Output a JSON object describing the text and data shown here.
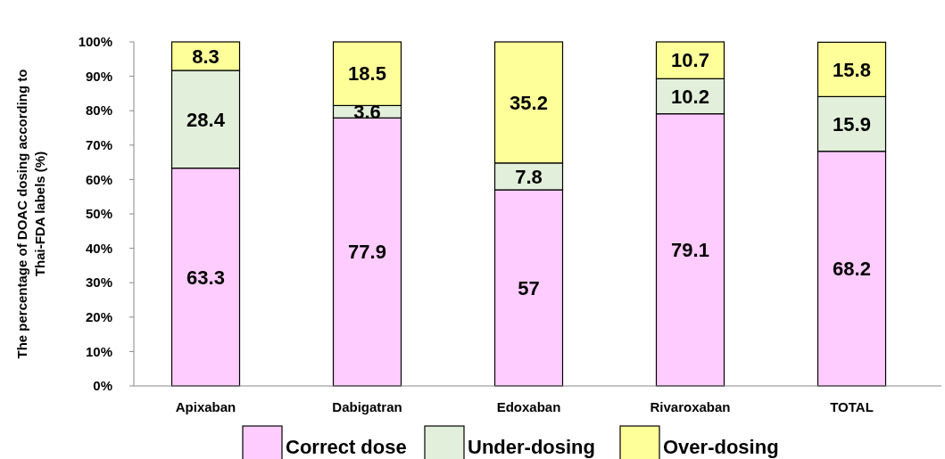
{
  "chart_data": {
    "type": "bar",
    "stacked": true,
    "ylabel": "The percentage of DOAC dosing according to Thai-FDA labels (%)",
    "categories": [
      "Apixaban",
      "Dabigatran",
      "Edoxaban",
      "Rivaroxaban",
      "TOTAL"
    ],
    "series": [
      {
        "name": "Correct dose",
        "color": "#ffccff",
        "values": [
          63.3,
          77.9,
          57,
          79.1,
          68.2
        ]
      },
      {
        "name": "Under-dosing",
        "color": "#e2efda",
        "values": [
          28.4,
          3.6,
          7.8,
          10.2,
          15.9
        ]
      },
      {
        "name": "Over-dosing",
        "color": "#ffff99",
        "values": [
          8.3,
          18.5,
          35.2,
          10.7,
          15.8
        ]
      }
    ],
    "ylim": [
      0,
      100
    ],
    "yticks": [
      {
        "value": 0,
        "label": "0%"
      },
      {
        "value": 10,
        "label": "10%"
      },
      {
        "value": 20,
        "label": "20%"
      },
      {
        "value": 30,
        "label": "30%"
      },
      {
        "value": 40,
        "label": "40%"
      },
      {
        "value": 50,
        "label": "50%"
      },
      {
        "value": 60,
        "label": "60%"
      },
      {
        "value": 70,
        "label": "70%"
      },
      {
        "value": 80,
        "label": "80%"
      },
      {
        "value": 90,
        "label": "90%"
      },
      {
        "value": 100,
        "label": "100%"
      }
    ],
    "data_labels": true,
    "legend": "bottom",
    "grid": false
  }
}
